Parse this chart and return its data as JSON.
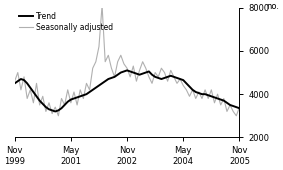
{
  "ylabel": "no.",
  "ylim": [
    2000,
    8000
  ],
  "yticks": [
    2000,
    4000,
    6000,
    8000
  ],
  "trend_color": "#000000",
  "sa_color": "#b0b0b0",
  "legend_trend": "Trend",
  "legend_sa": "Seasonally adjusted",
  "background_color": "#ffffff",
  "trend_lw": 1.4,
  "sa_lw": 0.8,
  "xtick_positions": [
    0,
    18,
    36,
    54,
    72
  ],
  "xtick_labels": [
    "Nov\n1999",
    "May\n2001",
    "Nov\n2002",
    "May\n2004",
    "Nov\n2005"
  ],
  "trend_values": [
    4500,
    4600,
    4700,
    4650,
    4500,
    4300,
    4100,
    3900,
    3700,
    3550,
    3400,
    3300,
    3250,
    3200,
    3250,
    3350,
    3500,
    3650,
    3750,
    3800,
    3850,
    3900,
    3950,
    4000,
    4100,
    4200,
    4300,
    4400,
    4500,
    4600,
    4700,
    4750,
    4800,
    4900,
    5000,
    5050,
    5100,
    5050,
    5000,
    4950,
    4900,
    4950,
    5000,
    5050,
    4900,
    4800,
    4750,
    4700,
    4750,
    4800,
    4850,
    4800,
    4750,
    4700,
    4650,
    4500,
    4350,
    4200,
    4100,
    4050,
    4000,
    4000,
    3950,
    3900,
    3850,
    3800,
    3750,
    3700,
    3600,
    3500,
    3450,
    3400,
    3350
  ],
  "sa_values": [
    4600,
    5000,
    4200,
    4800,
    3800,
    4200,
    3600,
    4500,
    3500,
    3900,
    3200,
    3600,
    3100,
    3400,
    3000,
    3800,
    3500,
    4200,
    3600,
    4100,
    3500,
    4200,
    3800,
    4500,
    4200,
    5200,
    5500,
    6200,
    8100,
    5500,
    5800,
    5200,
    4800,
    5500,
    5800,
    5400,
    5200,
    4800,
    5300,
    4600,
    5100,
    5500,
    5200,
    4800,
    4500,
    5000,
    4800,
    5200,
    5000,
    4600,
    5100,
    4800,
    4500,
    4700,
    4400,
    4200,
    3900,
    4200,
    3800,
    4100,
    3800,
    4200,
    3800,
    4200,
    3600,
    4000,
    3500,
    3800,
    3200,
    3500,
    3200,
    3000,
    3400
  ]
}
